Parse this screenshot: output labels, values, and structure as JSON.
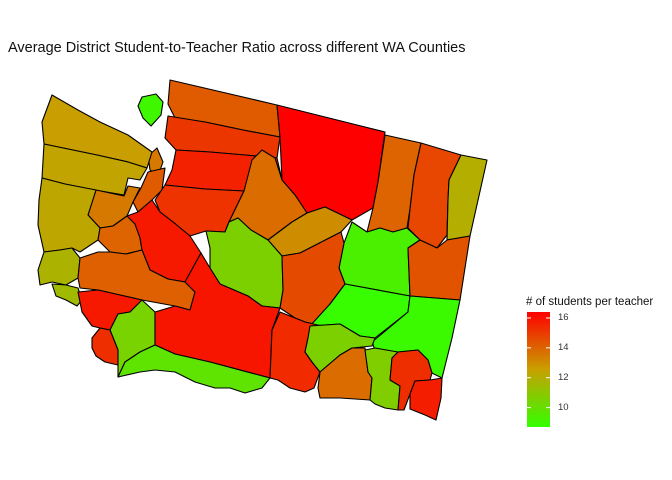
{
  "title": "Average District Student-to-Teacher Ratio across different WA Counties",
  "legend": {
    "title": "# of students per teacher",
    "min": 8.7,
    "max": 16.4,
    "low_color": "#33ff00",
    "mid_color": "#c8a000",
    "high_color": "#ff0000",
    "ticks": [
      {
        "value": 16,
        "label": "16"
      },
      {
        "value": 14,
        "label": "14"
      },
      {
        "value": 12,
        "label": "12"
      },
      {
        "value": 10,
        "label": "10"
      }
    ]
  },
  "chart_data": {
    "type": "choropleth",
    "fill_variable": "# of students per teacher",
    "regions": [
      {
        "id": "san-juan",
        "value": 9.0
      },
      {
        "id": "whatcom",
        "value": 14.2
      },
      {
        "id": "skagit",
        "value": 15.1
      },
      {
        "id": "snohomish",
        "value": 15.6
      },
      {
        "id": "okanogan",
        "value": 16.4
      },
      {
        "id": "ferry",
        "value": 14.0
      },
      {
        "id": "stevens",
        "value": 14.7
      },
      {
        "id": "pend-oreille",
        "value": 12.0
      },
      {
        "id": "island",
        "value": 13.5
      },
      {
        "id": "clallam",
        "value": 12.6
      },
      {
        "id": "jefferson",
        "value": 12.4
      },
      {
        "id": "kitsap",
        "value": 14.2
      },
      {
        "id": "mason",
        "value": 13.5
      },
      {
        "id": "grays-harbor",
        "value": 12.3
      },
      {
        "id": "king",
        "value": 15.2
      },
      {
        "id": "chelan",
        "value": 13.8
      },
      {
        "id": "douglas",
        "value": 13.0
      },
      {
        "id": "lincoln",
        "value": 9.3
      },
      {
        "id": "spokane",
        "value": 14.4
      },
      {
        "id": "pacific",
        "value": 11.8
      },
      {
        "id": "thurston",
        "value": 14.0
      },
      {
        "id": "pierce",
        "value": 15.8
      },
      {
        "id": "kittitas",
        "value": 10.6
      },
      {
        "id": "grant",
        "value": 14.6
      },
      {
        "id": "adams",
        "value": 8.8
      },
      {
        "id": "whitman",
        "value": 8.9
      },
      {
        "id": "wahkiakum",
        "value": 11.5
      },
      {
        "id": "lewis",
        "value": 14.1
      },
      {
        "id": "cowlitz",
        "value": 15.8
      },
      {
        "id": "skamania",
        "value": 10.5
      },
      {
        "id": "yakima",
        "value": 15.9
      },
      {
        "id": "clark",
        "value": 15.3
      },
      {
        "id": "klickitat",
        "value": 9.8
      },
      {
        "id": "benton",
        "value": 15.4
      },
      {
        "id": "franklin",
        "value": 10.6
      },
      {
        "id": "walla-walla",
        "value": 13.8
      },
      {
        "id": "columbia",
        "value": 10.7
      },
      {
        "id": "garfield",
        "value": 15.3
      },
      {
        "id": "asotin",
        "value": 15.7
      }
    ]
  }
}
